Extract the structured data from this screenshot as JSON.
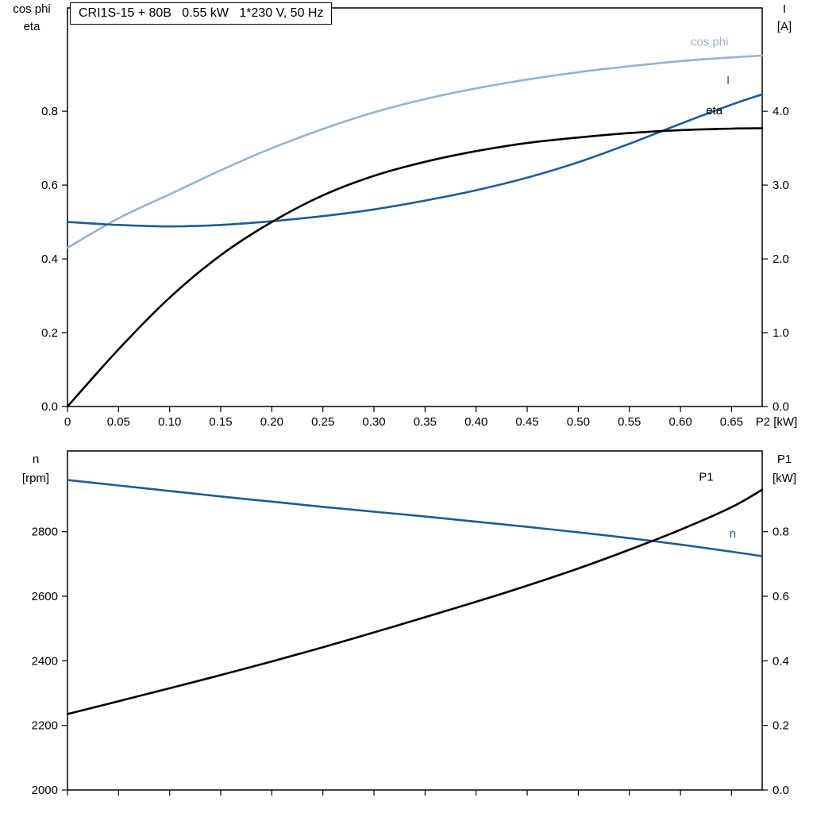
{
  "title_box": "CRI1S-15 + 80B   0.55 kW   1*230 V, 50 Hz",
  "colors": {
    "dark_blue": "#1d5c96",
    "light_blue": "#94b3d3",
    "black": "#000000"
  },
  "chart_data": [
    {
      "id": "top",
      "type": "line",
      "title": "CRI1S-15 + 80B   0.55 kW   1*230 V, 50 Hz",
      "x": [
        0,
        0.05,
        0.1,
        0.15,
        0.2,
        0.25,
        0.3,
        0.35,
        0.4,
        0.45,
        0.5,
        0.55,
        0.6,
        0.65,
        0.68
      ],
      "xlim": [
        0,
        0.68
      ],
      "x_tick_values": [
        0,
        0.05,
        0.1,
        0.15,
        0.2,
        0.25,
        0.3,
        0.35,
        0.4,
        0.45,
        0.5,
        0.55,
        0.6,
        0.65
      ],
      "x_tick_labels": [
        "0",
        "0.05",
        "0.10",
        "0.15",
        "0.20",
        "0.25",
        "0.30",
        "0.35",
        "0.40",
        "0.45",
        "0.50",
        "0.55",
        "0.60",
        "0.65"
      ],
      "x_axis_label": "P2 [kW]",
      "grid": false,
      "axes": {
        "left": {
          "header": [
            "cos phi",
            "eta"
          ],
          "lim": [
            0,
            1.08
          ],
          "tick_values": [
            0,
            0.2,
            0.4,
            0.6,
            0.8
          ],
          "tick_labels": [
            "0.0",
            "0.2",
            "0.4",
            "0.6",
            "0.8"
          ]
        },
        "right": {
          "header": [
            "I",
            "[A]"
          ],
          "lim": [
            0,
            5.4
          ],
          "tick_values": [
            0,
            1.0,
            2.0,
            3.0,
            4.0
          ],
          "tick_labels": [
            "0.0",
            "1.0",
            "2.0",
            "3.0",
            "4.0"
          ]
        }
      },
      "series": [
        {
          "name": "cos phi",
          "axis": "left",
          "color": "light_blue",
          "values": [
            0.43,
            0.51,
            0.575,
            0.64,
            0.7,
            0.752,
            0.797,
            0.833,
            0.862,
            0.886,
            0.906,
            0.922,
            0.936,
            0.946,
            0.951
          ],
          "label": {
            "text": "cos phi",
            "x": 0.61,
            "v": 0.978
          }
        },
        {
          "name": "I",
          "axis": "right",
          "color": "dark_blue",
          "values": [
            2.5,
            2.46,
            2.44,
            2.46,
            2.51,
            2.58,
            2.67,
            2.79,
            2.93,
            3.1,
            3.31,
            3.56,
            3.83,
            4.09,
            4.23
          ],
          "label": {
            "text": "I",
            "x": 0.645,
            "v": 4.37
          }
        },
        {
          "name": "eta",
          "axis": "left",
          "color": "black",
          "values": [
            0.0,
            0.155,
            0.295,
            0.41,
            0.5,
            0.572,
            0.625,
            0.663,
            0.692,
            0.714,
            0.729,
            0.741,
            0.749,
            0.753,
            0.754
          ],
          "label": {
            "text": "eta",
            "x": 0.625,
            "v": 0.792
          }
        }
      ]
    },
    {
      "id": "bottom",
      "type": "line",
      "x": [
        0,
        0.05,
        0.1,
        0.15,
        0.2,
        0.25,
        0.3,
        0.35,
        0.4,
        0.45,
        0.5,
        0.55,
        0.6,
        0.65,
        0.68
      ],
      "xlim": [
        0,
        0.68
      ],
      "x_tick_values": [
        0,
        0.05,
        0.1,
        0.15,
        0.2,
        0.25,
        0.3,
        0.35,
        0.4,
        0.45,
        0.5,
        0.55,
        0.6,
        0.65
      ],
      "x_tick_labels": null,
      "x_axis_label": null,
      "grid": false,
      "axes": {
        "left": {
          "header": [
            "n",
            "[rpm]"
          ],
          "lim": [
            2000,
            3050
          ],
          "tick_values": [
            2000,
            2200,
            2400,
            2600,
            2800
          ],
          "tick_labels": [
            "2000",
            "2200",
            "2400",
            "2600",
            "2800"
          ]
        },
        "right": {
          "header": [
            "P1",
            "[kW]"
          ],
          "lim": [
            0,
            1.05
          ],
          "tick_values": [
            0,
            0.2,
            0.4,
            0.6,
            0.8
          ],
          "tick_labels": [
            "0.0",
            "0.2",
            "0.4",
            "0.6",
            "0.8"
          ]
        }
      },
      "series": [
        {
          "name": "n",
          "axis": "left",
          "color": "dark_blue",
          "values": [
            2960,
            2943,
            2926,
            2909,
            2893,
            2877,
            2862,
            2847,
            2831,
            2815,
            2798,
            2780,
            2760,
            2738,
            2724
          ],
          "label": {
            "text": "n",
            "x": 0.648,
            "v": 2782
          }
        },
        {
          "name": "P1",
          "axis": "right",
          "color": "black",
          "values": [
            0.235,
            0.275,
            0.315,
            0.356,
            0.398,
            0.442,
            0.488,
            0.535,
            0.583,
            0.633,
            0.686,
            0.744,
            0.806,
            0.876,
            0.93
          ],
          "label": {
            "text": "P1",
            "x": 0.618,
            "v": 0.958
          }
        }
      ]
    }
  ]
}
